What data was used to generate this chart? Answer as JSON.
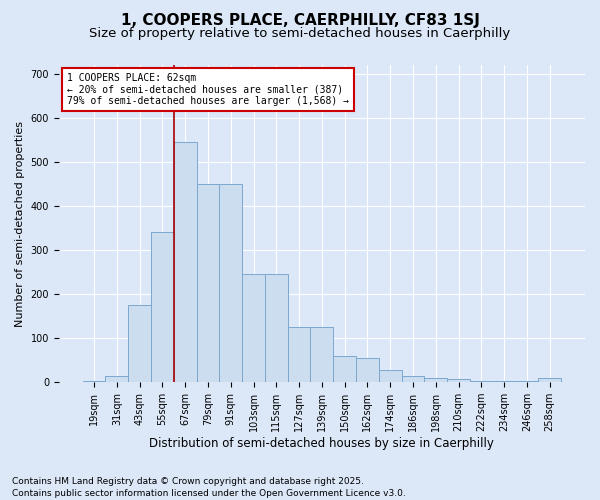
{
  "title_line1": "1, COOPERS PLACE, CAERPHILLY, CF83 1SJ",
  "title_line2": "Size of property relative to semi-detached houses in Caerphilly",
  "xlabel": "Distribution of semi-detached houses by size in Caerphilly",
  "ylabel": "Number of semi-detached properties",
  "categories": [
    "19sqm",
    "31sqm",
    "43sqm",
    "55sqm",
    "67sqm",
    "79sqm",
    "91sqm",
    "103sqm",
    "115sqm",
    "127sqm",
    "139sqm",
    "150sqm",
    "162sqm",
    "174sqm",
    "186sqm",
    "198sqm",
    "210sqm",
    "222sqm",
    "234sqm",
    "246sqm",
    "258sqm"
  ],
  "values": [
    3,
    15,
    175,
    340,
    545,
    450,
    450,
    245,
    245,
    125,
    125,
    60,
    55,
    27,
    15,
    10,
    8,
    3,
    3,
    3,
    10
  ],
  "bar_color": "#ccddf0",
  "bar_edge_color": "#7ba8d0",
  "vline_color": "#aa0000",
  "vline_x": 3.5,
  "annotation_text": "1 COOPERS PLACE: 62sqm\n← 20% of semi-detached houses are smaller (387)\n79% of semi-detached houses are larger (1,568) →",
  "annotation_box_facecolor": "white",
  "annotation_box_edgecolor": "#cc0000",
  "ylim": [
    0,
    720
  ],
  "yticks": [
    0,
    100,
    200,
    300,
    400,
    500,
    600,
    700
  ],
  "footnote1": "Contains HM Land Registry data © Crown copyright and database right 2025.",
  "footnote2": "Contains public sector information licensed under the Open Government Licence v3.0.",
  "background_color": "#dce8f8",
  "plot_bg_color": "#dce8f8",
  "title_fontsize": 11,
  "subtitle_fontsize": 9.5,
  "ylabel_fontsize": 8,
  "xlabel_fontsize": 8.5,
  "tick_fontsize": 7,
  "annot_fontsize": 7,
  "footnote_fontsize": 6.5
}
